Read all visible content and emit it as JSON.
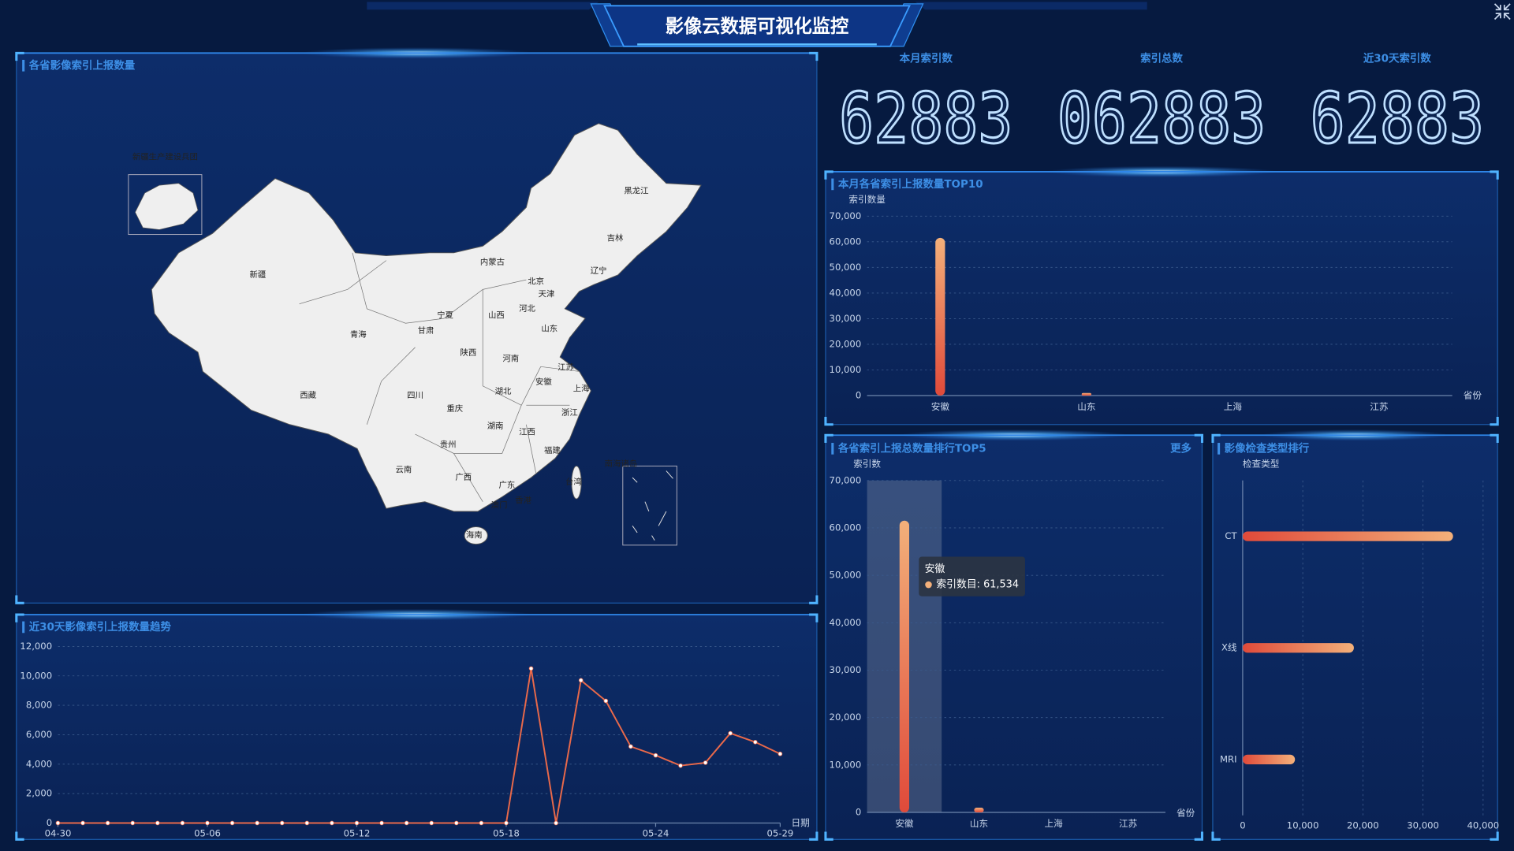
{
  "header": {
    "title": "影像云数据可视化监控"
  },
  "kpis": [
    {
      "label": "本月索引数",
      "value": "62883"
    },
    {
      "label": "索引总数",
      "value": "062883"
    },
    {
      "label": "近30天索引数",
      "value": "62883"
    }
  ],
  "map": {
    "title": "各省影像索引上报数量",
    "provinces": [
      "新疆",
      "西藏",
      "青海",
      "甘肃",
      "宁夏",
      "内蒙古",
      "黑龙江",
      "吉林",
      "辽宁",
      "北京",
      "天津",
      "河北",
      "山西",
      "山东",
      "陕西",
      "河南",
      "江苏",
      "安徽",
      "上海",
      "湖北",
      "四川",
      "重庆",
      "浙江",
      "湖南",
      "江西",
      "贵州",
      "福建",
      "云南",
      "广西",
      "广东",
      "台湾",
      "澳门",
      "香港",
      "海南"
    ],
    "insets": [
      "新疆生产建设兵团",
      "南海诸岛"
    ]
  },
  "chart_data": [
    {
      "type": "line",
      "title": "近30天影像索引上报数量趋势",
      "xlabel": "日期",
      "categories": [
        "04-30",
        null,
        null,
        null,
        null,
        null,
        "05-06",
        null,
        null,
        null,
        null,
        null,
        "05-12",
        null,
        null,
        null,
        null,
        null,
        "05-18",
        null,
        null,
        null,
        null,
        null,
        "05-24",
        null,
        null,
        null,
        null,
        "05-29"
      ],
      "values": [
        0,
        0,
        0,
        0,
        0,
        0,
        0,
        0,
        0,
        0,
        0,
        0,
        0,
        0,
        0,
        0,
        0,
        0,
        0,
        10500,
        0,
        9700,
        8300,
        5200,
        4600,
        3900,
        4100,
        6100,
        5500,
        4700
      ],
      "color": "#e9694a",
      "ylim": [
        0,
        12000
      ],
      "yticks": [
        0,
        {
          "value": 2000,
          "label": "2,000"
        },
        {
          "value": 4000,
          "label": "4,000"
        },
        {
          "value": 6000,
          "label": "6,000"
        },
        {
          "value": 8000,
          "label": "8,000"
        },
        {
          "value": 10000,
          "label": "10,000"
        },
        {
          "value": 12000,
          "label": "12,000"
        }
      ],
      "grid": true
    },
    {
      "type": "bar",
      "title": "本月各省索引上报数量TOP10",
      "ylabel": "索引数量",
      "xlabel": "省份",
      "categories": [
        "安徽",
        "山东",
        "上海",
        "江苏"
      ],
      "values": [
        61534,
        1000,
        0,
        0
      ],
      "gradient": [
        "#f3b07a",
        "#e04a3a"
      ],
      "ylim": [
        0,
        70000
      ],
      "yticks": [
        0,
        {
          "value": 10000,
          "label": "10,000"
        },
        {
          "value": 20000,
          "label": "20,000"
        },
        {
          "value": 30000,
          "label": "30,000"
        },
        {
          "value": 40000,
          "label": "40,000"
        },
        {
          "value": 50000,
          "label": "50,000"
        },
        {
          "value": 60000,
          "label": "60,000"
        },
        {
          "value": 70000,
          "label": "70,000"
        }
      ],
      "grid": true
    },
    {
      "type": "bar",
      "title": "各省索引上报总数量排行TOP5",
      "more": "更多",
      "ylabel": "索引数",
      "xlabel": "省份",
      "categories": [
        "安徽",
        "山东",
        "上海",
        "江苏"
      ],
      "values": [
        61534,
        1000,
        0,
        0
      ],
      "gradient": [
        "#f3b07a",
        "#e04a3a"
      ],
      "ylim": [
        0,
        70000
      ],
      "yticks": [
        0,
        {
          "value": 10000,
          "label": "10,000"
        },
        {
          "value": 20000,
          "label": "20,000"
        },
        {
          "value": 30000,
          "label": "30,000"
        },
        {
          "value": 40000,
          "label": "40,000"
        },
        {
          "value": 50000,
          "label": "50,000"
        },
        {
          "value": 60000,
          "label": "60,000"
        },
        {
          "value": 70000,
          "label": "70,000"
        }
      ],
      "grid": true,
      "tooltip": {
        "text": "索引数目: 61,534"
      }
    },
    {
      "type": "hbar",
      "title": "影像检查类型排行",
      "ylabel": "检查类型",
      "categories": [
        "CT",
        "X线",
        "MRI"
      ],
      "values": [
        35000,
        18500,
        8700
      ],
      "gradient": [
        "#f3b07a",
        "#e04a3a"
      ],
      "xlim": [
        0,
        40000
      ],
      "xticks": [
        0,
        {
          "value": 10000,
          "label": "10,000"
        },
        {
          "value": 20000,
          "label": "20,000"
        },
        {
          "value": 30000,
          "label": "30,000"
        },
        {
          "value": 40000,
          "label": "40,000"
        }
      ],
      "grid": true
    }
  ]
}
